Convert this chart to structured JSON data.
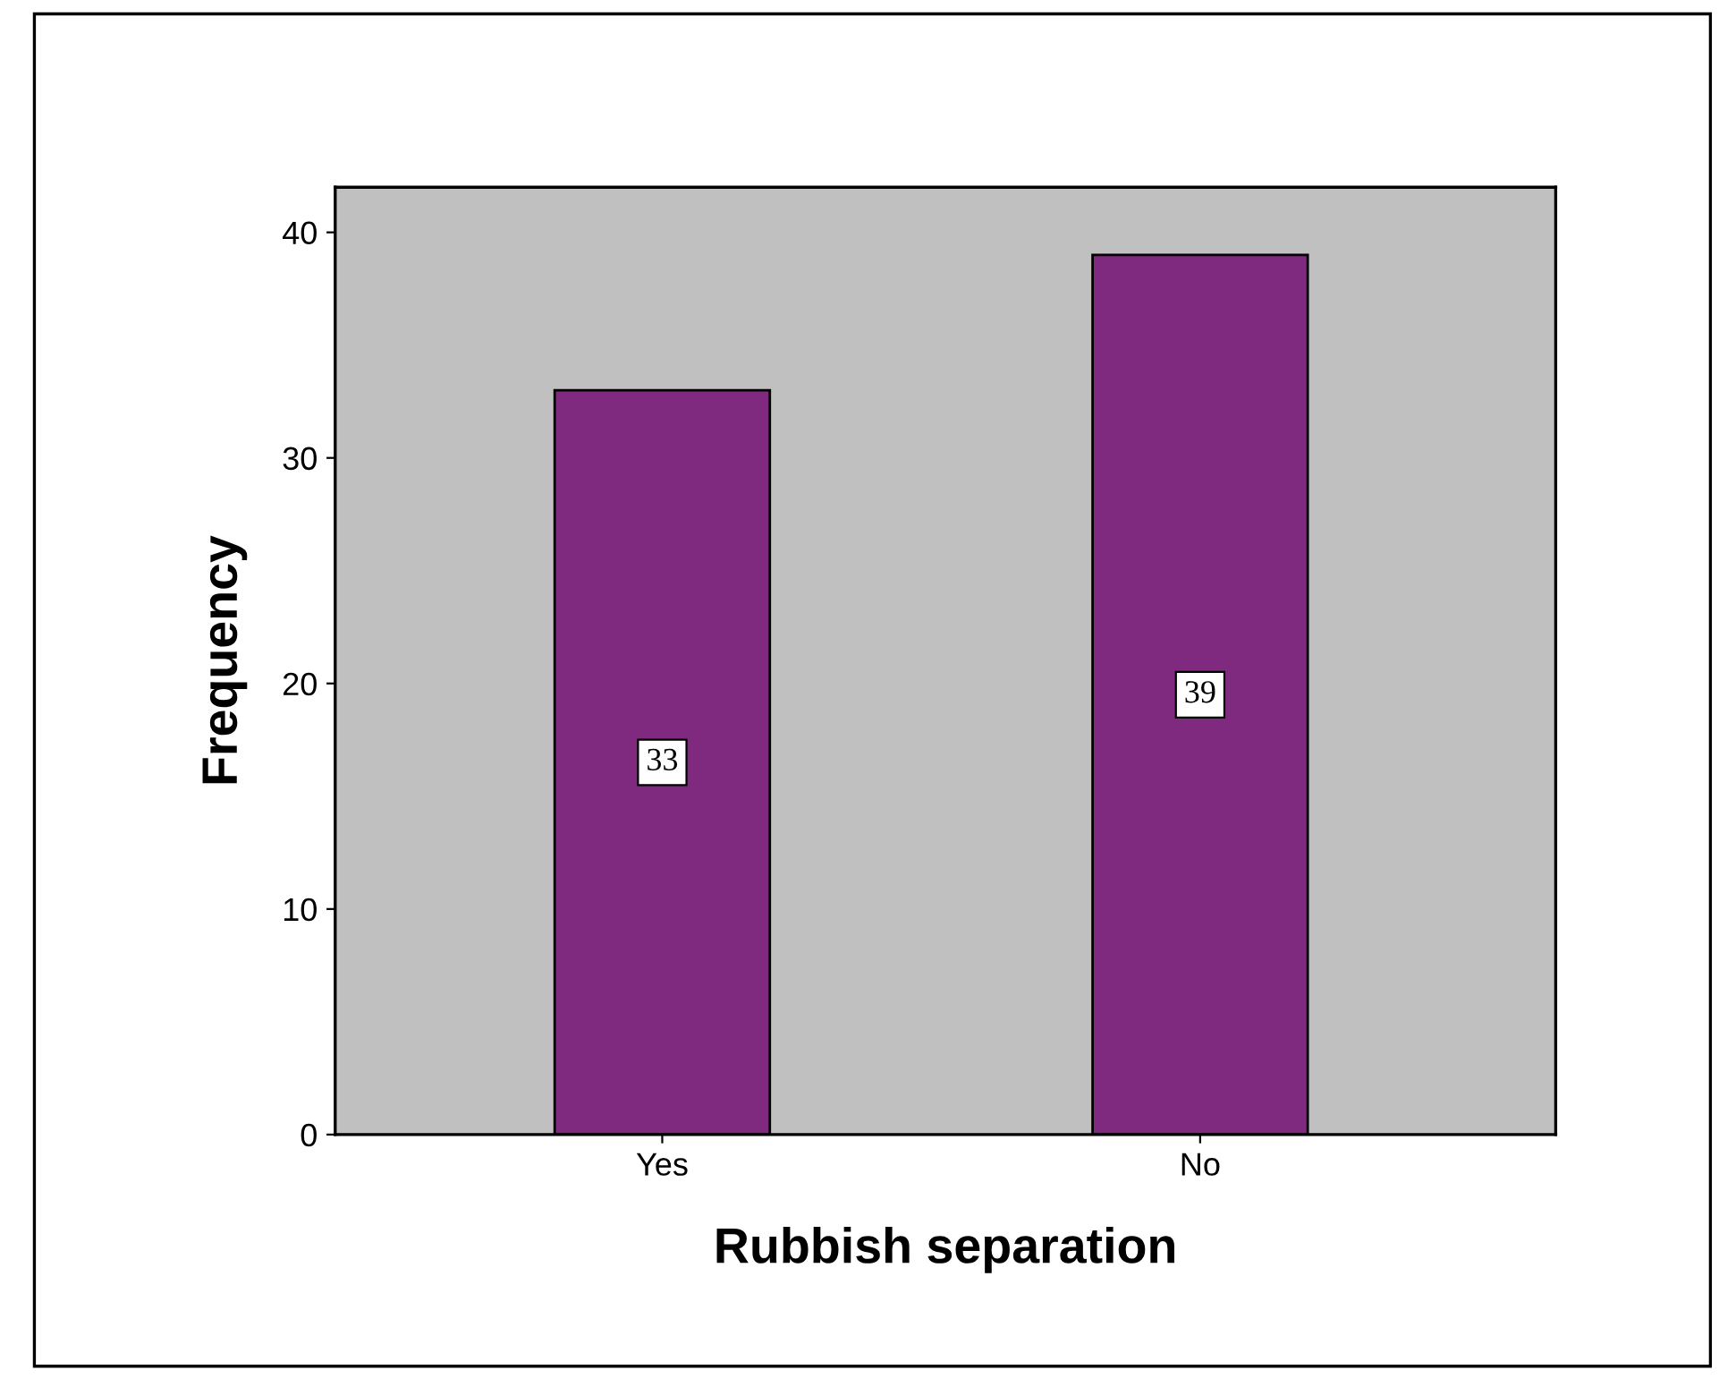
{
  "chart_data": {
    "type": "bar",
    "xlabel": "Rubbish separation",
    "ylabel": "Frequency",
    "categories": [
      "Yes",
      "No"
    ],
    "values": [
      33,
      39
    ],
    "color": "#7f2a7f",
    "ylim": [
      0,
      42
    ],
    "yticks": [
      0,
      10,
      20,
      30,
      40
    ],
    "grid": false,
    "data_labels": true
  }
}
